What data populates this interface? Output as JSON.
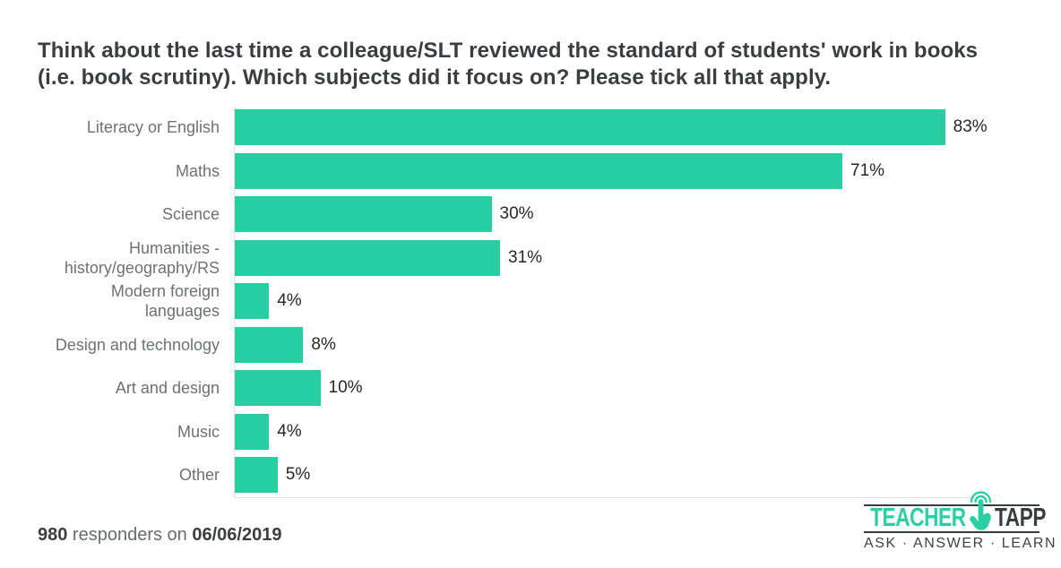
{
  "title": "Think about the last time a colleague/SLT reviewed the standard of students' work in books (i.e. book scrutiny). Which subjects did it focus on? Please tick all that apply.",
  "chart_data": {
    "type": "bar",
    "orientation": "horizontal",
    "title": "Think about the last time a colleague/SLT reviewed the standard of students' work in books (i.e. book scrutiny). Which subjects did it focus on? Please tick all that apply.",
    "categories": [
      "Literacy or English",
      "Maths",
      "Science",
      "Humanities - history/geography/RS",
      "Modern foreign languages",
      "Design and technology",
      "Art and design",
      "Music",
      "Other"
    ],
    "values": [
      83,
      71,
      30,
      31,
      4,
      8,
      10,
      4,
      5
    ],
    "value_labels": [
      "83%",
      "71%",
      "30%",
      "31%",
      "4%",
      "8%",
      "10%",
      "4%",
      "5%"
    ],
    "xlabel": "",
    "ylabel": "",
    "xlim": [
      0,
      93
    ],
    "grid": false,
    "legend": false,
    "bar_color": "#27cda3",
    "label_color": "#6e7072",
    "value_color": "#262626",
    "axis_line_color": "#e3e3e3"
  },
  "footer": {
    "responders_count": "980",
    "responders_text": " responders on ",
    "date": "06/06/2019"
  },
  "logo": {
    "brand_left": "TEACHER",
    "brand_right": "TAPP",
    "tagline": "ASK · ANSWER · LEARN",
    "teal": "#2acfa5",
    "dark": "#3a3d40"
  }
}
